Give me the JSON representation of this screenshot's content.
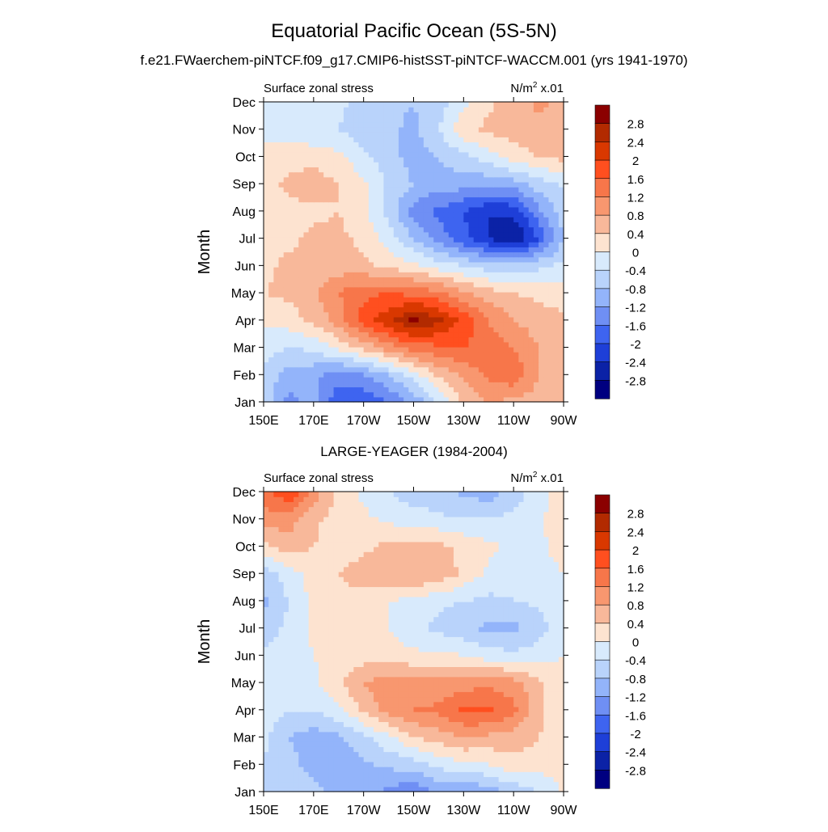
{
  "title": "Equatorial Pacific Ocean (5S-5N)",
  "colorbar": {
    "levels": [
      "2.8",
      "2.4",
      "2",
      "1.6",
      "1.2",
      "0.8",
      "0.4",
      "0",
      "-0.4",
      "-0.8",
      "-1.2",
      "-1.6",
      "-2",
      "-2.4",
      "-2.8"
    ],
    "colors": [
      "#8b0000",
      "#b22a00",
      "#d93800",
      "#ff4f1f",
      "#f7764a",
      "#f8976f",
      "#f8b89a",
      "#fde3d0",
      "#d8eafc",
      "#b9d3fb",
      "#93b4fa",
      "#6f8ff4",
      "#3e64f0",
      "#1e3fd8",
      "#0b22a6",
      "#000080"
    ]
  },
  "chart_data": [
    {
      "type": "heatmap",
      "title": "f.e21.FWaerchem-piNTCF.f09_g17.CMIP6-histSST-piNTCF-WACCM.001 (yrs 1941-1970)",
      "subtitle_left": "Surface zonal stress",
      "units": "N/m² x.01",
      "units_base": "N/m",
      "units_sup": "2",
      "units_tail": " x.01",
      "ylabel": "Month",
      "yticks": [
        "Jan",
        "Feb",
        "Mar",
        "Apr",
        "May",
        "Jun",
        "Jul",
        "Aug",
        "Sep",
        "Oct",
        "Nov",
        "Dec"
      ],
      "xticks": [
        "150E",
        "170E",
        "170W",
        "150W",
        "130W",
        "110W",
        "90W"
      ],
      "x_range_lon": [
        150,
        270
      ],
      "grid_lon": [
        150,
        160,
        170,
        180,
        190,
        200,
        210,
        220,
        230,
        240,
        250,
        260,
        270
      ],
      "z": [
        [
          -0.6,
          -1.3,
          -1.1,
          -1.9,
          -2.0,
          -1.6,
          -1.1,
          -0.4,
          0.5,
          0.8,
          0.7,
          0.6,
          0.6
        ],
        [
          -0.5,
          -1.0,
          -1.1,
          -1.4,
          -1.2,
          -0.8,
          -0.2,
          0.5,
          0.9,
          1.3,
          1.5,
          0.8,
          0.6
        ],
        [
          -0.2,
          -0.4,
          -0.3,
          0.1,
          0.5,
          1.0,
          1.4,
          1.5,
          1.6,
          1.4,
          1.2,
          0.8,
          0.6
        ],
        [
          0.1,
          0.2,
          0.5,
          1.0,
          1.8,
          2.3,
          2.9,
          2.5,
          1.9,
          1.2,
          0.8,
          0.6,
          0.5
        ],
        [
          0.4,
          0.5,
          0.7,
          1.2,
          1.5,
          1.6,
          1.5,
          1.3,
          0.9,
          0.6,
          0.4,
          0.3,
          0.2
        ],
        [
          0.3,
          0.5,
          0.6,
          0.6,
          0.5,
          0.3,
          0.1,
          -0.2,
          -0.4,
          -0.6,
          -0.7,
          -0.5,
          -0.3
        ],
        [
          0.2,
          0.3,
          0.5,
          0.5,
          0.3,
          -0.2,
          -0.8,
          -1.4,
          -1.9,
          -2.4,
          -2.9,
          -2.0,
          -0.8
        ],
        [
          0.2,
          0.3,
          0.3,
          0.4,
          0.1,
          -0.5,
          -1.4,
          -1.7,
          -2.0,
          -2.4,
          -2.3,
          -1.3,
          -0.6
        ],
        [
          0.2,
          0.5,
          0.6,
          0.4,
          0.1,
          -0.5,
          -0.8,
          -1.0,
          -1.0,
          -1.1,
          -1.0,
          -0.6,
          -0.3
        ],
        [
          0.1,
          0.2,
          0.3,
          0.1,
          -0.3,
          -0.6,
          -1.0,
          -0.8,
          -0.5,
          -0.2,
          0.2,
          0.4,
          0.5
        ],
        [
          -0.1,
          -0.2,
          -0.4,
          -0.4,
          -0.7,
          -0.7,
          -0.9,
          -0.4,
          0.3,
          0.5,
          0.6,
          0.7,
          0.6
        ],
        [
          -0.1,
          -0.2,
          -0.1,
          -0.3,
          -0.6,
          -0.7,
          -0.8,
          -0.6,
          -0.1,
          0.3,
          0.6,
          0.9,
          0.7
        ]
      ]
    },
    {
      "type": "heatmap",
      "title": "LARGE-YEAGER (1984-2004)",
      "subtitle_left": "Surface zonal stress",
      "units": "N/m² x.01",
      "units_base": "N/m",
      "units_sup": "2",
      "units_tail": " x.01",
      "ylabel": "Month",
      "yticks": [
        "Jan",
        "Feb",
        "Mar",
        "Apr",
        "May",
        "Jun",
        "Jul",
        "Aug",
        "Sep",
        "Oct",
        "Nov",
        "Dec"
      ],
      "xticks": [
        "150E",
        "170E",
        "170W",
        "150W",
        "130W",
        "110W",
        "90W"
      ],
      "x_range_lon": [
        150,
        270
      ],
      "grid_lon": [
        150,
        160,
        170,
        180,
        190,
        200,
        210,
        220,
        230,
        240,
        250,
        260,
        270
      ],
      "z": [
        [
          -0.5,
          -0.6,
          -0.7,
          -0.9,
          -1.0,
          -1.3,
          -1.6,
          -1.0,
          -1.3,
          -1.0,
          -0.7,
          -0.4,
          0.1
        ],
        [
          -0.4,
          -0.7,
          -0.9,
          -1.1,
          -0.9,
          -0.7,
          -0.6,
          -0.3,
          -0.1,
          0.0,
          0.3,
          0.2,
          0.1
        ],
        [
          -0.3,
          -0.8,
          -1.0,
          -0.9,
          -0.5,
          -0.1,
          0.4,
          0.6,
          0.8,
          0.7,
          0.6,
          0.4,
          0.2
        ],
        [
          -0.2,
          -0.4,
          -0.4,
          -0.1,
          0.5,
          1.0,
          1.2,
          1.3,
          1.7,
          1.7,
          1.3,
          0.5,
          0.1
        ],
        [
          -0.1,
          -0.2,
          -0.1,
          0.3,
          0.8,
          1.0,
          1.0,
          0.9,
          1.0,
          1.1,
          1.0,
          0.5,
          0.1
        ],
        [
          -0.3,
          -0.2,
          0.0,
          0.1,
          0.2,
          0.2,
          0.1,
          0.1,
          0.0,
          -0.2,
          -0.3,
          -0.2,
          0.0
        ],
        [
          -0.6,
          -0.3,
          0.1,
          0.3,
          0.2,
          0.0,
          -0.3,
          -0.5,
          -0.7,
          -0.9,
          -0.9,
          -0.6,
          -0.1
        ],
        [
          -0.9,
          -0.4,
          0.1,
          0.3,
          0.2,
          0.0,
          -0.1,
          -0.3,
          -0.4,
          -0.5,
          -0.4,
          -0.3,
          -0.1
        ],
        [
          -0.6,
          -0.2,
          0.2,
          0.4,
          0.6,
          0.7,
          0.8,
          0.7,
          0.3,
          -0.1,
          -0.3,
          -0.2,
          0.0
        ],
        [
          0.3,
          0.6,
          0.4,
          0.2,
          0.3,
          0.5,
          0.6,
          0.5,
          0.3,
          0.1,
          -0.1,
          -0.1,
          0.2
        ],
        [
          1.0,
          1.0,
          0.5,
          0.2,
          0.1,
          -0.1,
          -0.2,
          -0.3,
          -0.4,
          -0.4,
          -0.3,
          -0.1,
          0.3
        ],
        [
          1.4,
          2.0,
          1.0,
          0.3,
          -0.1,
          -0.4,
          -0.6,
          -0.7,
          -0.9,
          -1.0,
          -0.6,
          -0.2,
          0.2
        ]
      ]
    }
  ]
}
